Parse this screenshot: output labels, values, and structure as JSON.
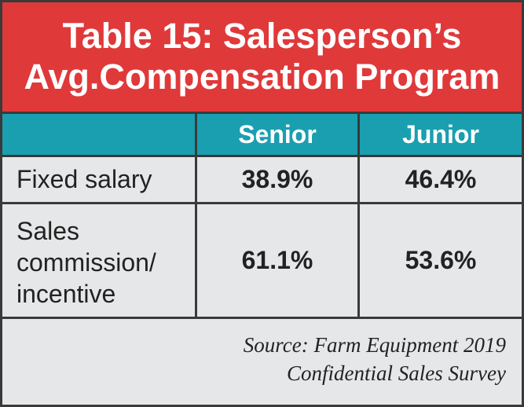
{
  "title": {
    "line1": "Table 15: Salesperson’s",
    "line2": "Avg.Compensation Program"
  },
  "columns": [
    "",
    "Senior",
    "Junior"
  ],
  "rows": [
    {
      "label_lines": [
        "Fixed salary"
      ],
      "senior": "38.9%",
      "junior": "46.4%"
    },
    {
      "label_lines": [
        "Sales",
        "commission/",
        "incentive"
      ],
      "senior": "61.1%",
      "junior": "53.6%"
    }
  ],
  "source": {
    "line1": "Source: Farm Equipment 2019",
    "line2": "Confidential Sales Survey"
  },
  "colors": {
    "title_bg": "#e0393a",
    "header_bg": "#1a9fb0",
    "body_bg": "#e6e7e8"
  }
}
